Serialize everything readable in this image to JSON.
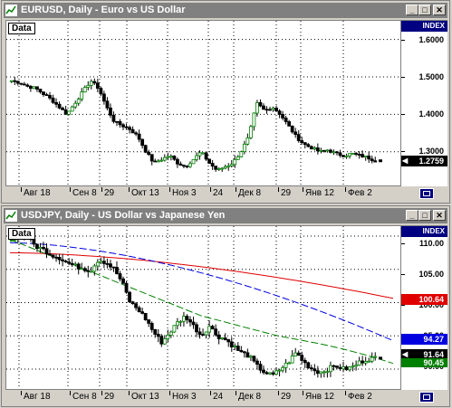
{
  "windows": [
    {
      "title": "EURUSD, Daily - Euro vs US Dollar",
      "data_label": "Data",
      "index_label": "INDEX",
      "y_ticks": [
        "1.6000",
        "1.5000",
        "1.4000",
        "1.3000"
      ],
      "x_labels": [
        "Авг 18",
        "Сен 8",
        "29",
        "Окт 13",
        "Ноя 3",
        "24",
        "Дек 8",
        "29",
        "Янв 12",
        "Фев 2"
      ],
      "last_price": "1.2759",
      "colors": {
        "last_price_bg": "#000000"
      }
    },
    {
      "title": "USDJPY, Daily - US Dollar vs Japanese Yen",
      "data_label": "Data",
      "index_label": "INDEX",
      "y_ticks": [
        "110.00",
        "105.00",
        "100.00",
        "95.00",
        "90.00"
      ],
      "x_labels": [
        "Авг 18",
        "Сен 8",
        "29",
        "Окт 13",
        "Ноя 3",
        "24",
        "Дек 8",
        "29",
        "Янв 12",
        "Фев 2"
      ],
      "badges": {
        "red_ma": "100.64",
        "blue_ma": "94.27",
        "last_price": "91.64",
        "green_ma": "90.45"
      },
      "colors": {
        "red_ma": "#e00000",
        "blue_ma": "#0000e0",
        "green_ma": "#008000",
        "last_price_bg": "#000000"
      }
    }
  ],
  "chart_data": [
    {
      "type": "candlestick",
      "title": "EURUSD, Daily - Euro vs US Dollar",
      "x": [
        "Авг 18",
        "Сен 8",
        "29",
        "Окт 13",
        "Ноя 3",
        "24",
        "Дек 8",
        "29",
        "Янв 12",
        "Фев 2"
      ],
      "close_trace": [
        1.49,
        1.485,
        1.475,
        1.47,
        1.455,
        1.44,
        1.42,
        1.4,
        1.43,
        1.46,
        1.49,
        1.47,
        1.42,
        1.38,
        1.37,
        1.36,
        1.34,
        1.3,
        1.27,
        1.28,
        1.29,
        1.27,
        1.26,
        1.28,
        1.3,
        1.27,
        1.25,
        1.26,
        1.27,
        1.3,
        1.34,
        1.43,
        1.41,
        1.42,
        1.4,
        1.37,
        1.34,
        1.32,
        1.31,
        1.3,
        1.305,
        1.295,
        1.29,
        1.295,
        1.29,
        1.285,
        1.276
      ],
      "ylim": [
        1.21,
        1.65
      ],
      "y_ticks": [
        1.3,
        1.4,
        1.5,
        1.6
      ],
      "last_price": 1.2759,
      "grid": true
    },
    {
      "type": "candlestick",
      "title": "USDJPY, Daily - US Dollar vs Japanese Yen",
      "x": [
        "Авг 18",
        "Сен 8",
        "29",
        "Окт 13",
        "Ноя 3",
        "24",
        "Дек 8",
        "29",
        "Янв 12",
        "Фев 2"
      ],
      "close_trace": [
        109.5,
        110.2,
        109.8,
        108.5,
        108.0,
        107.2,
        106.8,
        106.0,
        105.5,
        105.2,
        104.8,
        106.5,
        106.0,
        105.0,
        103.0,
        100.0,
        99.0,
        97.5,
        95.5,
        94.0,
        95.5,
        97.0,
        98.0,
        96.5,
        95.0,
        96.5,
        95.0,
        94.5,
        93.5,
        92.5,
        92.0,
        90.5,
        89.5,
        89.0,
        90.0,
        91.0,
        92.5,
        91.0,
        90.0,
        89.5,
        90.0,
        90.5,
        90.0,
        90.2,
        91.0,
        91.5,
        91.64
      ],
      "moving_averages": [
        {
          "color": "#e00000",
          "last": 100.64
        },
        {
          "color": "#0000e0",
          "last": 94.27
        },
        {
          "color": "#008000",
          "last": 90.45
        }
      ],
      "ylim": [
        87.0,
        111.5
      ],
      "y_ticks": [
        90,
        95,
        100,
        105,
        110
      ],
      "last_price": 91.64,
      "grid": true
    }
  ]
}
